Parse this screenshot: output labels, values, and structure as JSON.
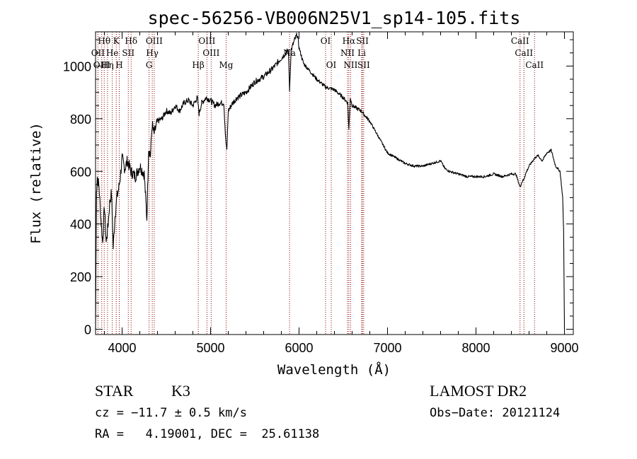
{
  "chart_data": {
    "type": "line",
    "title": "spec-56256-VB006N25V1_sp14-105.fits",
    "xlabel": "Wavelength (Å)",
    "ylabel": "Flux (relative)",
    "xlim": [
      3700,
      9100
    ],
    "ylim": [
      -20,
      1130
    ],
    "xticks": [
      4000,
      5000,
      6000,
      7000,
      8000,
      9000
    ],
    "yticks": [
      0,
      200,
      400,
      600,
      800,
      1000
    ],
    "grid": false,
    "line_color": "#000000",
    "marker_color": "#8b0000",
    "series": [
      {
        "x": [
          3700,
          3710,
          3720,
          3740,
          3760,
          3780,
          3800,
          3820,
          3840,
          3860,
          3880,
          3900,
          3920,
          3940,
          3960,
          3980,
          4000,
          4030,
          4060,
          4100,
          4150,
          4200,
          4250,
          4280,
          4300,
          4320,
          4340,
          4360,
          4400,
          4450,
          4500,
          4550,
          4600,
          4650,
          4700,
          4750,
          4800,
          4850,
          4870,
          4900,
          4950,
          5000,
          5050,
          5100,
          5150,
          5170,
          5184,
          5200,
          5250,
          5300,
          5400,
          5500,
          5600,
          5700,
          5800,
          5850,
          5880,
          5893,
          5910,
          5950,
          5980,
          6000,
          6050,
          6100,
          6200,
          6300,
          6400,
          6500,
          6550,
          6563,
          6580,
          6600,
          6700,
          6800,
          6900,
          7000,
          7100,
          7200,
          7300,
          7400,
          7500,
          7600,
          7650,
          7700,
          7800,
          7900,
          8000,
          8100,
          8200,
          8300,
          8400,
          8450,
          8498,
          8520,
          8542,
          8560,
          8600,
          8662,
          8700,
          8750,
          8800,
          8850,
          8900,
          8950,
          8980,
          8990,
          9000
        ],
        "y": [
          0,
          520,
          580,
          540,
          420,
          330,
          470,
          330,
          390,
          480,
          520,
          310,
          430,
          500,
          530,
          580,
          650,
          610,
          640,
          600,
          580,
          620,
          590,
          420,
          690,
          660,
          780,
          740,
          790,
          800,
          830,
          820,
          850,
          830,
          860,
          870,
          850,
          880,
          820,
          860,
          880,
          870,
          850,
          860,
          860,
          720,
          680,
          830,
          860,
          880,
          900,
          940,
          960,
          990,
          1030,
          1050,
          1060,
          910,
          1060,
          1100,
          1120,
          1070,
          1010,
          990,
          950,
          920,
          910,
          880,
          860,
          760,
          880,
          850,
          830,
          790,
          730,
          670,
          650,
          630,
          620,
          620,
          630,
          640,
          610,
          600,
          590,
          580,
          580,
          580,
          590,
          580,
          590,
          590,
          540,
          560,
          570,
          590,
          620,
          650,
          660,
          640,
          670,
          680,
          620,
          600,
          500,
          380,
          0
        ]
      }
    ],
    "lines": [
      {
        "label": "Hθ",
        "x": 3798,
        "row": 0
      },
      {
        "label": "K",
        "x": 3934,
        "row": 0
      },
      {
        "label": "Hδ",
        "x": 4102,
        "row": 0
      },
      {
        "label": "OIII",
        "x": 4363,
        "row": 0
      },
      {
        "label": "OIII",
        "x": 4959,
        "row": 0
      },
      {
        "label": "OI",
        "x": 6300,
        "row": 0
      },
      {
        "label": "Hα",
        "x": 6563,
        "row": 0
      },
      {
        "label": "SII",
        "x": 6716,
        "row": 0
      },
      {
        "label": "CaII",
        "x": 8498,
        "row": 0
      },
      {
        "label": "OII",
        "x": 3727,
        "row": 1
      },
      {
        "label": "He",
        "x": 3889,
        "row": 1
      },
      {
        "label": "SII",
        "x": 4070,
        "row": 1
      },
      {
        "label": "Hγ",
        "x": 4341,
        "row": 1
      },
      {
        "label": "OIII",
        "x": 5007,
        "row": 1
      },
      {
        "label": "Na",
        "x": 5893,
        "row": 1
      },
      {
        "label": "NII",
        "x": 6548,
        "row": 1
      },
      {
        "label": "Li",
        "x": 6708,
        "row": 1
      },
      {
        "label": "CaII",
        "x": 8542,
        "row": 1
      },
      {
        "label": "OIII",
        "x": 3770,
        "row": 2
      },
      {
        "label": "Hη",
        "x": 3835,
        "row": 2
      },
      {
        "label": "H",
        "x": 3968,
        "row": 2
      },
      {
        "label": "G",
        "x": 4305,
        "row": 2
      },
      {
        "label": "Hβ",
        "x": 4861,
        "row": 2
      },
      {
        "label": "Mg",
        "x": 5176,
        "row": 2
      },
      {
        "label": "OI",
        "x": 6364,
        "row": 2
      },
      {
        "label": "NII",
        "x": 6583,
        "row": 2
      },
      {
        "label": "SII",
        "x": 6731,
        "row": 2
      },
      {
        "label": "CaII",
        "x": 8662,
        "row": 2
      }
    ]
  },
  "info": {
    "object_class": "STAR",
    "subclass": "K3",
    "survey": "LAMOST DR2",
    "cz": "cz = −11.7 ± 0.5 km/s",
    "obs_date": "Obs−Date: 20121124",
    "coords": "RA =   4.19001, DEC =  25.61138"
  }
}
